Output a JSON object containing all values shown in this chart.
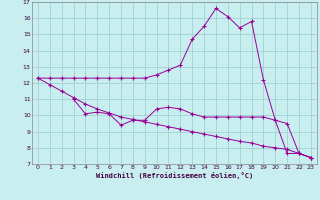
{
  "xlabel": "Windchill (Refroidissement éolien,°C)",
  "background_color": "#c8eef0",
  "line_color": "#990099",
  "grid_color": "#99cccc",
  "xlim": [
    -0.5,
    23.5
  ],
  "ylim": [
    7,
    17
  ],
  "xticks": [
    0,
    1,
    2,
    3,
    4,
    5,
    6,
    7,
    8,
    9,
    10,
    11,
    12,
    13,
    14,
    15,
    16,
    17,
    18,
    19,
    20,
    21,
    22,
    23
  ],
  "yticks": [
    7,
    8,
    9,
    10,
    11,
    12,
    13,
    14,
    15,
    16,
    17
  ],
  "line1_x": [
    0,
    1,
    2,
    3,
    4,
    5,
    6,
    7,
    8,
    9,
    10,
    11,
    12,
    13,
    14,
    15,
    16,
    17,
    18,
    19,
    20,
    21,
    22,
    23
  ],
  "line1_y": [
    12.3,
    12.3,
    12.3,
    12.3,
    12.3,
    12.3,
    12.3,
    12.3,
    12.3,
    12.3,
    12.5,
    12.8,
    13.1,
    14.7,
    15.5,
    16.6,
    16.1,
    15.4,
    15.8,
    12.2,
    9.7,
    9.5,
    7.65,
    7.4
  ],
  "line2_x": [
    3,
    4,
    5,
    6,
    7,
    8,
    9,
    10,
    11,
    12,
    13,
    14,
    15,
    16,
    17,
    18,
    19,
    20,
    21,
    22,
    23
  ],
  "line2_y": [
    11.0,
    10.1,
    10.2,
    10.1,
    9.4,
    9.7,
    9.7,
    10.4,
    10.5,
    10.4,
    10.1,
    9.9,
    9.9,
    9.9,
    9.9,
    9.9,
    9.9,
    9.7,
    7.65,
    7.65,
    7.4
  ],
  "line3_x": [
    0,
    1,
    2,
    3,
    4,
    5,
    6,
    7,
    8,
    9,
    10,
    11,
    12,
    13,
    14,
    15,
    16,
    17,
    18,
    19,
    20,
    21,
    22,
    23
  ],
  "line3_y": [
    12.3,
    11.9,
    11.5,
    11.1,
    10.7,
    10.4,
    10.15,
    9.9,
    9.75,
    9.6,
    9.45,
    9.3,
    9.15,
    9.0,
    8.85,
    8.7,
    8.55,
    8.4,
    8.3,
    8.1,
    8.0,
    7.9,
    7.65,
    7.4
  ]
}
